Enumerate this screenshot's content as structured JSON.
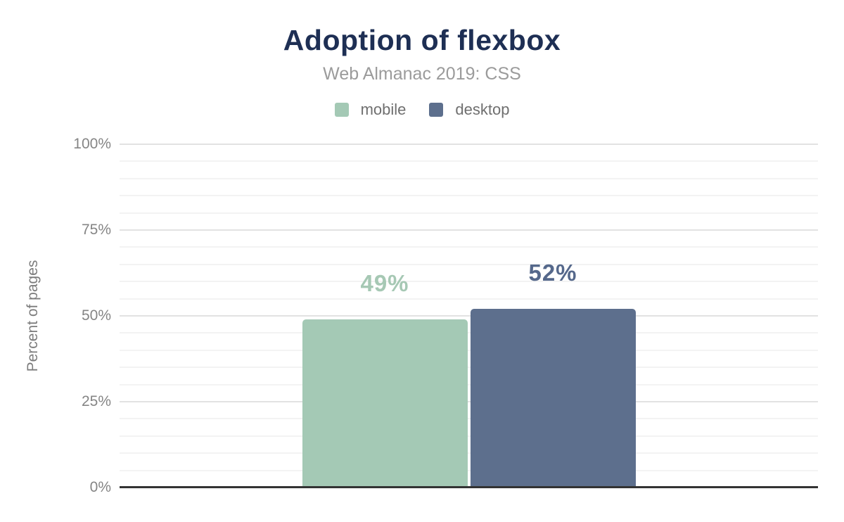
{
  "chart_data": {
    "type": "bar",
    "title": "Adoption of flexbox",
    "subtitle": "Web Almanac 2019: CSS",
    "ylabel": "Percent of pages",
    "xlabel": "",
    "ylim": [
      0,
      100
    ],
    "grid": true,
    "legend_position": "top",
    "series": [
      {
        "name": "mobile",
        "value": 49,
        "label": "49%",
        "color": "#a4c9b5",
        "label_color": "#a6c8b4"
      },
      {
        "name": "desktop",
        "value": 52,
        "label": "52%",
        "color": "#5d6f8d",
        "label_color": "#55688b"
      }
    ],
    "y_ticks": [
      {
        "value": 0,
        "label": "0%"
      },
      {
        "value": 25,
        "label": "25%"
      },
      {
        "value": 50,
        "label": "50%"
      },
      {
        "value": 75,
        "label": "75%"
      },
      {
        "value": 100,
        "label": "100%"
      }
    ],
    "minor_grid_step": 5,
    "major_grid_step": 25,
    "colors": {
      "title": "#1e2f54",
      "subtitle": "#9b9b9b",
      "axis_line": "#333333",
      "grid_minor": "#f3f3f3",
      "grid_major": "#e2e2e2"
    }
  }
}
